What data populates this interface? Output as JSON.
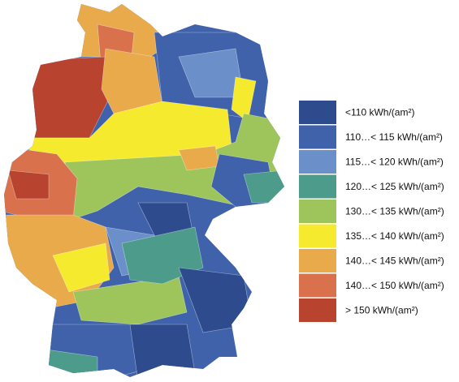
{
  "legend": {
    "items": [
      {
        "label": "<110 kWh/(am²)",
        "color": "#2e4b8e"
      },
      {
        "label": "110…< 115 kWh/(am²)",
        "color": "#3f62ab"
      },
      {
        "label": "115…< 120 kWh/(am²)",
        "color": "#6b90c9"
      },
      {
        "label": "120…< 125 kWh/(am²)",
        "color": "#4d9b8b"
      },
      {
        "label": "130…< 135 kWh/(am²)",
        "color": "#9ec45c"
      },
      {
        "label": "135…< 140 kWh/(am²)",
        "color": "#f6ea2f"
      },
      {
        "label": "140…< 145 kWh/(am²)",
        "color": "#e8aa4b"
      },
      {
        "label": "140…< 150 kWh/(am²)",
        "color": "#d8714c"
      },
      {
        "label": "> 150 kWh/(am²)",
        "color": "#b8432f"
      }
    ]
  }
}
